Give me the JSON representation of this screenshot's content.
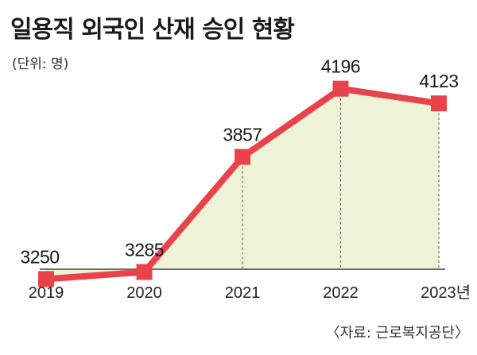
{
  "title": "일용직 외국인 산재 승인 현황",
  "unit": "(단위: 명)",
  "source": "〈자료: 근로복지공단〉",
  "colors": {
    "line": "#e8434b",
    "marker": "#e8434b",
    "area": "#eef2d6",
    "baseline": "#6f6f6f",
    "dropline": "#555555"
  },
  "chart_data": {
    "type": "area",
    "title": "일용직 외국인 산재 승인 현황",
    "ylabel": "",
    "unit": "명",
    "x": [
      "2019",
      "2020",
      "2021",
      "2022",
      "2023년"
    ],
    "series": [
      {
        "name": "",
        "values": [
          3250,
          3285,
          3857,
          4196,
          4123
        ]
      }
    ],
    "data_labels": [
      "3250",
      "3285",
      "3857",
      "4196",
      "4123"
    ],
    "ylim": [
      2900,
      4400
    ],
    "grid": false,
    "legend": "none"
  }
}
